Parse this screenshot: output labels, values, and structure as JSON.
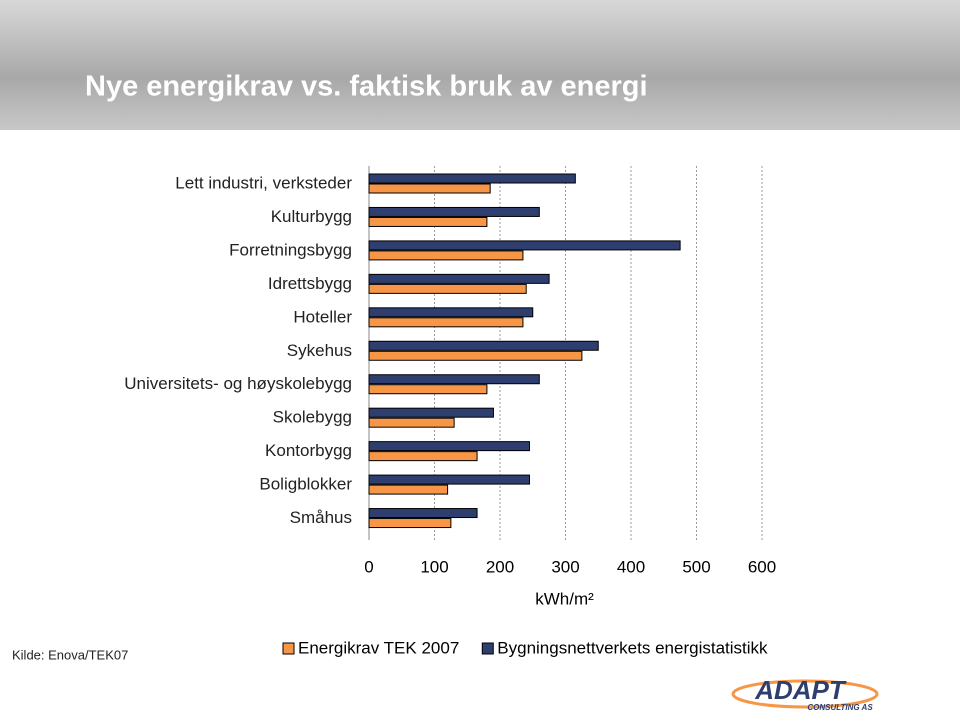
{
  "chart_data": {
    "type": "hbar",
    "title": "Nye energikrav  vs. faktisk bruk av energi",
    "categories": [
      "Lett industri, verksteder",
      "Kulturbygg",
      "Forretningsbygg",
      "Idrettsbygg",
      "Hoteller",
      "Sykehus",
      "Universitets- og høyskolebygg",
      "Skolebygg",
      "Kontorbygg",
      "Boligblokker",
      "Småhus"
    ],
    "series": [
      {
        "name": "Energikrav TEK 2007",
        "color": "#f79646",
        "values": [
          185,
          180,
          235,
          240,
          235,
          325,
          180,
          130,
          165,
          120,
          125
        ]
      },
      {
        "name": "Bygningsnettverkets energistatistikk",
        "color": "#2e3f6f",
        "values": [
          315,
          260,
          475,
          275,
          250,
          350,
          260,
          190,
          245,
          245,
          165
        ]
      }
    ],
    "xlim": [
      0,
      600
    ],
    "xticks": [
      0,
      100,
      200,
      300,
      400,
      500,
      600
    ],
    "xlabel": "kWh/m²",
    "grid": true,
    "legend": "bottom"
  },
  "source": "Kilde: Enova/TEK07",
  "logo": {
    "name": "ADAPT",
    "tagline": "CONSULTING AS"
  }
}
